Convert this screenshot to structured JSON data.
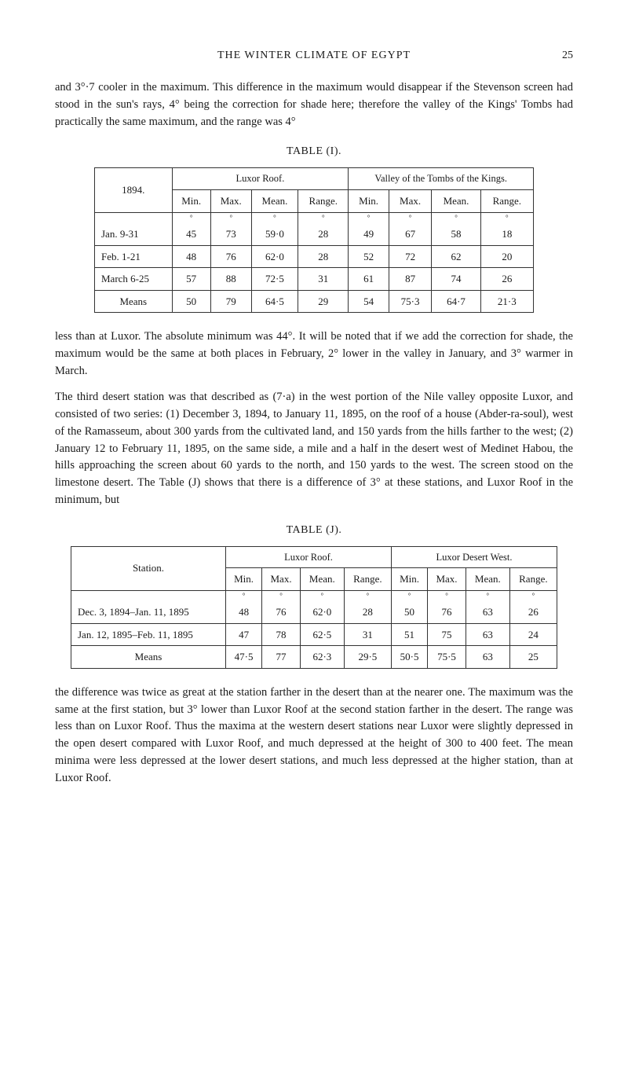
{
  "header": {
    "title": "THE WINTER CLIMATE OF EGYPT",
    "page_number": "25"
  },
  "paragraphs": {
    "p1": "and 3°·7 cooler in the maximum. This difference in the maximum would disappear if the Stevenson screen had stood in the sun's rays, 4° being the correction for shade here; therefore the valley of the Kings' Tombs had practically the same maximum, and the range was 4°",
    "p2": "less than at Luxor. The absolute minimum was 44°. It will be noted that if we add the correction for shade, the maximum would be the same at both places in February, 2° lower in the valley in January, and 3° warmer in March.",
    "p3": "The third desert station was that described as (7·a) in the west portion of the Nile valley opposite Luxor, and consisted of two series: (1) December 3, 1894, to January 11, 1895, on the roof of a house (Abder-ra-soul), west of the Ramasseum, about 300 yards from the cultivated land, and 150 yards from the hills farther to the west; (2) January 12 to February 11, 1895, on the same side, a mile and a half in the desert west of Medinet Habou, the hills approaching the screen about 60 yards to the north, and 150 yards to the west. The screen stood on the limestone desert. The Table (J) shows that there is a difference of 3° at these stations, and Luxor Roof in the minimum, but",
    "p4": "the difference was twice as great at the station farther in the desert than at the nearer one. The maximum was the same at the first station, but 3° lower than Luxor Roof at the second station farther in the desert. The range was less than on Luxor Roof. Thus the maxima at the western desert stations near Luxor were slightly depressed in the open desert compared with Luxor Roof, and much depressed at the height of 300 to 400 feet. The mean minima were less depressed at the lower desert stations, and much less depressed at the higher station, than at Luxor Roof."
  },
  "table1": {
    "label": "TABLE (I).",
    "year_label": "1894.",
    "group_headers": [
      "Luxor Roof.",
      "Valley of the Tombs of the Kings."
    ],
    "sub_headers": [
      "Min.",
      "Max.",
      "Mean.",
      "Range.",
      "Min.",
      "Max.",
      "Mean.",
      "Range."
    ],
    "degree_marks": [
      "°",
      "°",
      "°",
      "°",
      "°",
      "°",
      "°",
      "°"
    ],
    "rows": [
      {
        "label": "Jan.    9-31",
        "cells": [
          "45",
          "73",
          "59·0",
          "28",
          "49",
          "67",
          "58",
          "18"
        ]
      },
      {
        "label": "Feb.    1-21",
        "cells": [
          "48",
          "76",
          "62·0",
          "28",
          "52",
          "72",
          "62",
          "20"
        ]
      },
      {
        "label": "March 6-25",
        "cells": [
          "57",
          "88",
          "72·5",
          "31",
          "61",
          "87",
          "74",
          "26"
        ]
      }
    ],
    "means": {
      "label": "Means",
      "cells": [
        "50",
        "79",
        "64·5",
        "29",
        "54",
        "75·3",
        "64·7",
        "21·3"
      ]
    }
  },
  "table2": {
    "label": "TABLE (J).",
    "station_label": "Station.",
    "group_headers": [
      "Luxor Roof.",
      "Luxor Desert West."
    ],
    "sub_headers": [
      "Min.",
      "Max.",
      "Mean.",
      "Range.",
      "Min.",
      "Max.",
      "Mean.",
      "Range."
    ],
    "degree_marks": [
      "°",
      "°",
      "°",
      "°",
      "°",
      "°",
      "°",
      "°"
    ],
    "rows": [
      {
        "label": "Dec. 3, 1894–Jan. 11, 1895",
        "cells": [
          "48",
          "76",
          "62·0",
          "28",
          "50",
          "76",
          "63",
          "26"
        ]
      },
      {
        "label": "Jan. 12, 1895–Feb. 11, 1895",
        "cells": [
          "47",
          "78",
          "62·5",
          "31",
          "51",
          "75",
          "63",
          "24"
        ]
      }
    ],
    "means": {
      "label": "Means",
      "cells": [
        "47·5",
        "77",
        "62·3",
        "29·5",
        "50·5",
        "75·5",
        "63",
        "25"
      ]
    }
  }
}
